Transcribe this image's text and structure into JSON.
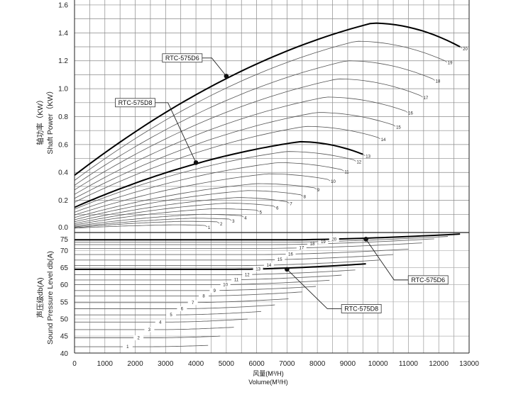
{
  "chart_data": [
    {
      "type": "line",
      "title": "",
      "ylabel_cn": "轴功率（KW）",
      "ylabel": "Shaft Power（KW）",
      "xlim": [
        0,
        13000
      ],
      "ylim": [
        -0.03,
        1.635
      ],
      "yticks": [
        "0.0",
        "0.2",
        "0.4",
        "0.6",
        "0.8",
        "1.0",
        "1.2",
        "1.4",
        "1.6"
      ],
      "grid": true,
      "curve_model": "fields: label, y_start (at 0 M3/H), x_peak, y_peak, x_end, y_end",
      "series": [
        {
          "name": "1",
          "y_start": 0.001,
          "x_peak": 3270,
          "y_peak": 0.025,
          "x_end": 4300,
          "y_end": 0.02
        },
        {
          "name": "2",
          "y_start": 0.004,
          "x_peak": 3570,
          "y_peak": 0.05,
          "x_end": 4700,
          "y_end": 0.046
        },
        {
          "name": "3",
          "y_start": 0.009,
          "x_peak": 3880,
          "y_peak": 0.072,
          "x_end": 5100,
          "y_end": 0.066
        },
        {
          "name": "4",
          "y_start": 0.015,
          "x_peak": 4180,
          "y_peak": 0.1,
          "x_end": 5500,
          "y_end": 0.09
        },
        {
          "name": "5",
          "y_start": 0.024,
          "x_peak": 4560,
          "y_peak": 0.14,
          "x_end": 6000,
          "y_end": 0.13
        },
        {
          "name": "6",
          "y_start": 0.034,
          "x_peak": 4980,
          "y_peak": 0.18,
          "x_end": 6550,
          "y_end": 0.16
        },
        {
          "name": "7",
          "y_start": 0.047,
          "x_peak": 5320,
          "y_peak": 0.22,
          "x_end": 7000,
          "y_end": 0.19
        },
        {
          "name": "8",
          "y_start": 0.061,
          "x_peak": 5660,
          "y_peak": 0.27,
          "x_end": 7450,
          "y_end": 0.24
        },
        {
          "name": "9",
          "y_start": 0.077,
          "x_peak": 6000,
          "y_peak": 0.32,
          "x_end": 7900,
          "y_end": 0.29
        },
        {
          "name": "10",
          "y_start": 0.095,
          "x_peak": 6350,
          "y_peak": 0.39,
          "x_end": 8350,
          "y_end": 0.35
        },
        {
          "name": "11",
          "y_start": 0.115,
          "x_peak": 6690,
          "y_peak": 0.47,
          "x_end": 8800,
          "y_end": 0.42
        },
        {
          "name": "12",
          "y_start": 0.137,
          "x_peak": 6990,
          "y_peak": 0.55,
          "x_end": 9200,
          "y_end": 0.49
        },
        {
          "name": "13",
          "y_start": 0.15,
          "x_peak": 7400,
          "y_peak": 0.62,
          "x_end": 9500,
          "y_end": 0.53,
          "bold": true
        },
        {
          "name": "14",
          "y_start": 0.186,
          "x_peak": 7600,
          "y_peak": 0.73,
          "x_end": 10000,
          "y_end": 0.65
        },
        {
          "name": "15",
          "y_start": 0.214,
          "x_peak": 7980,
          "y_peak": 0.83,
          "x_end": 10500,
          "y_end": 0.74
        },
        {
          "name": "16",
          "y_start": 0.243,
          "x_peak": 8280,
          "y_peak": 0.94,
          "x_end": 10900,
          "y_end": 0.84
        },
        {
          "name": "17",
          "y_start": 0.275,
          "x_peak": 8660,
          "y_peak": 1.07,
          "x_end": 11400,
          "y_end": 0.95
        },
        {
          "name": "18",
          "y_start": 0.308,
          "x_peak": 8970,
          "y_peak": 1.2,
          "x_end": 11800,
          "y_end": 1.07
        },
        {
          "name": "19",
          "y_start": 0.343,
          "x_peak": 9270,
          "y_peak": 1.34,
          "x_end": 12200,
          "y_end": 1.2
        },
        {
          "name": "20",
          "y_start": 0.38,
          "x_peak": 9800,
          "y_peak": 1.47,
          "x_end": 12700,
          "y_end": 1.3,
          "bold": true
        }
      ],
      "annotations": [
        {
          "text": "RTC-575D6",
          "point": [
            5000,
            1.09
          ],
          "box": [
            3550,
            1.22
          ]
        },
        {
          "text": "RTC-575D8",
          "point": [
            4000,
            0.47
          ],
          "box": [
            2000,
            0.9
          ]
        }
      ]
    },
    {
      "type": "line",
      "title": "",
      "ylabel_cn": "声压级db(A)",
      "ylabel": "Sound Pressure Level db(A)",
      "xlabel_cn": "风量(M³/H)",
      "xlabel": "Volume(M³/H)",
      "xlim": [
        0,
        13000
      ],
      "ylim": [
        40,
        75.2
      ],
      "xticks": [
        "0",
        "1000",
        "2000",
        "3000",
        "4000",
        "5000",
        "6000",
        "7000",
        "8000",
        "9000",
        "10000",
        "11000",
        "12000",
        "13000"
      ],
      "yticks": [
        "40",
        "45",
        "50",
        "55",
        "60",
        "65",
        "70",
        "75"
      ],
      "grid": true,
      "curve_model": "fields: label, y_start (flat level), x_end, y_end",
      "series": [
        {
          "name": "1",
          "y_start": 41.9,
          "x_end": 4400,
          "y_end": 42.3
        },
        {
          "name": "2",
          "y_start": 44.5,
          "x_end": 4800,
          "y_end": 45.0
        },
        {
          "name": "3",
          "y_start": 46.9,
          "x_end": 5250,
          "y_end": 47.6
        },
        {
          "name": "4",
          "y_start": 49.1,
          "x_end": 5700,
          "y_end": 50.0
        },
        {
          "name": "5",
          "y_start": 51.2,
          "x_end": 6150,
          "y_end": 52.2
        },
        {
          "name": "6",
          "y_start": 53.0,
          "x_end": 6600,
          "y_end": 54.1
        },
        {
          "name": "7",
          "y_start": 54.8,
          "x_end": 7050,
          "y_end": 55.9
        },
        {
          "name": "8",
          "y_start": 56.7,
          "x_end": 7500,
          "y_end": 57.9
        },
        {
          "name": "9",
          "y_start": 58.3,
          "x_end": 7950,
          "y_end": 59.5
        },
        {
          "name": "10",
          "y_start": 60.0,
          "x_end": 8400,
          "y_end": 61.3
        },
        {
          "name": "11",
          "y_start": 61.4,
          "x_end": 8800,
          "y_end": 62.8
        },
        {
          "name": "12",
          "y_start": 62.9,
          "x_end": 9250,
          "y_end": 64.3
        },
        {
          "name": "13",
          "y_start": 64.5,
          "x_end": 9600,
          "y_end": 66.1,
          "bold": true
        },
        {
          "name": "14",
          "y_start": 65.6,
          "x_end": 10050,
          "y_end": 67.2
        },
        {
          "name": "15",
          "y_start": 67.2,
          "x_end": 10500,
          "y_end": 68.8
        },
        {
          "name": "16",
          "y_start": 68.8,
          "x_end": 11000,
          "y_end": 70.4
        },
        {
          "name": "17",
          "y_start": 70.6,
          "x_end": 11450,
          "y_end": 72.2
        },
        {
          "name": "18",
          "y_start": 71.7,
          "x_end": 11850,
          "y_end": 73.4
        },
        {
          "name": "19",
          "y_start": 72.4,
          "x_end": 12300,
          "y_end": 74.1
        },
        {
          "name": "20",
          "y_start": 73.1,
          "x_end": 12700,
          "y_end": 74.8,
          "bold": true
        }
      ],
      "annotations": [
        {
          "text": "RTC-575D6",
          "point": [
            9600,
            73.3
          ],
          "box": [
            11650,
            61.4
          ]
        },
        {
          "text": "RTC-575D8",
          "point": [
            7000,
            64.5
          ],
          "box": [
            9450,
            53.0
          ]
        }
      ]
    }
  ]
}
